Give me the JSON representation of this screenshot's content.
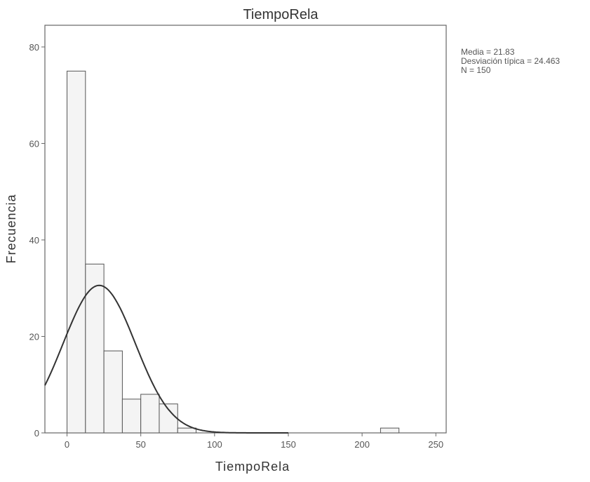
{
  "chart_data": {
    "type": "bar",
    "title": "TiempoRela",
    "xlabel": "TiempoRela",
    "ylabel": "Frecuencia",
    "xlim": [
      -15,
      257
    ],
    "ylim": [
      0,
      84.5
    ],
    "xticks": [
      0,
      50,
      100,
      150,
      200,
      250
    ],
    "yticks": [
      0,
      20,
      40,
      60,
      80
    ],
    "bin_width": 12.5,
    "bins": [
      {
        "start": 0,
        "end": 12.5,
        "count": 75
      },
      {
        "start": 12.5,
        "end": 25,
        "count": 35
      },
      {
        "start": 25,
        "end": 37.5,
        "count": 17
      },
      {
        "start": 37.5,
        "end": 50,
        "count": 7
      },
      {
        "start": 50,
        "end": 62.5,
        "count": 8
      },
      {
        "start": 62.5,
        "end": 75,
        "count": 6
      },
      {
        "start": 75,
        "end": 87.5,
        "count": 1
      },
      {
        "start": 212.5,
        "end": 225,
        "count": 1
      }
    ],
    "normal_curve": {
      "mean": 21.83,
      "std": 24.463,
      "n": 150
    },
    "stats_lines": [
      "Media = 21.83",
      "Desviación típica = 24.463",
      "N = 150"
    ],
    "grid": false,
    "colors": {
      "bar_fill": "#f4f4f4",
      "bar_stroke": "#555555",
      "curve": "#333333",
      "frame": "#666666"
    }
  }
}
